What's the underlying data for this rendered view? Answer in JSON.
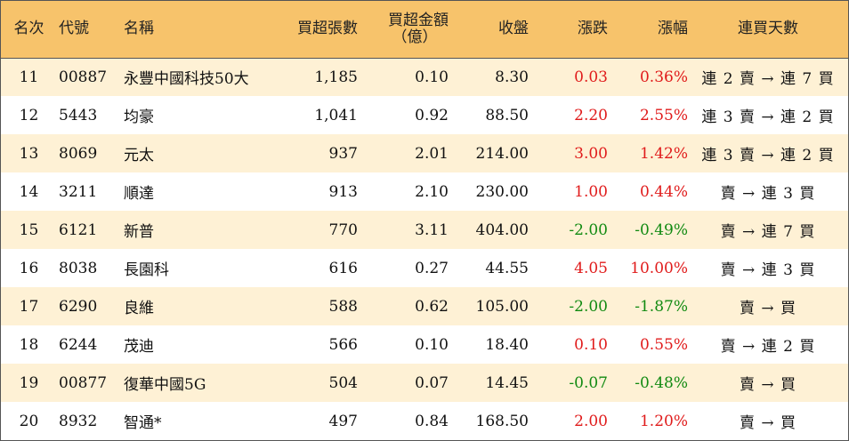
{
  "colors": {
    "header_bg": "#f7c36b",
    "stripe_bg": "#fef1d5",
    "up": "#e01b1b",
    "down": "#118a11"
  },
  "headers": {
    "rank": "名次",
    "code": "代號",
    "name": "名稱",
    "net_lots": "買超張數",
    "net_amount_line1": "買超金額",
    "net_amount_line2": "（億）",
    "close": "收盤",
    "change": "漲跌",
    "change_pct": "漲幅",
    "streak": "連買天數"
  },
  "rows": [
    {
      "rank": "11",
      "code": "00887",
      "name": "永豐中國科技50大",
      "net_lots": "1,185",
      "net_amount": "0.10",
      "close": "8.30",
      "change": "0.03",
      "change_pct": "0.36%",
      "direction": "up",
      "streak": "連 2 賣 → 連 7 買"
    },
    {
      "rank": "12",
      "code": "5443",
      "name": "均豪",
      "net_lots": "1,041",
      "net_amount": "0.92",
      "close": "88.50",
      "change": "2.20",
      "change_pct": "2.55%",
      "direction": "up",
      "streak": "連 3 賣 → 連 2 買"
    },
    {
      "rank": "13",
      "code": "8069",
      "name": "元太",
      "net_lots": "937",
      "net_amount": "2.01",
      "close": "214.00",
      "change": "3.00",
      "change_pct": "1.42%",
      "direction": "up",
      "streak": "連 3 賣 → 連 2 買"
    },
    {
      "rank": "14",
      "code": "3211",
      "name": "順達",
      "net_lots": "913",
      "net_amount": "2.10",
      "close": "230.00",
      "change": "1.00",
      "change_pct": "0.44%",
      "direction": "up",
      "streak": "賣 → 連 3 買"
    },
    {
      "rank": "15",
      "code": "6121",
      "name": "新普",
      "net_lots": "770",
      "net_amount": "3.11",
      "close": "404.00",
      "change": "-2.00",
      "change_pct": "-0.49%",
      "direction": "down",
      "streak": "賣 → 連 7 買"
    },
    {
      "rank": "16",
      "code": "8038",
      "name": "長園科",
      "net_lots": "616",
      "net_amount": "0.27",
      "close": "44.55",
      "change": "4.05",
      "change_pct": "10.00%",
      "direction": "up",
      "streak": "賣 → 連 3 買"
    },
    {
      "rank": "17",
      "code": "6290",
      "name": "良維",
      "net_lots": "588",
      "net_amount": "0.62",
      "close": "105.00",
      "change": "-2.00",
      "change_pct": "-1.87%",
      "direction": "down",
      "streak": "賣 → 買"
    },
    {
      "rank": "18",
      "code": "6244",
      "name": "茂迪",
      "net_lots": "566",
      "net_amount": "0.10",
      "close": "18.40",
      "change": "0.10",
      "change_pct": "0.55%",
      "direction": "up",
      "streak": "賣 → 連 2 買"
    },
    {
      "rank": "19",
      "code": "00877",
      "name": "復華中國5G",
      "net_lots": "504",
      "net_amount": "0.07",
      "close": "14.45",
      "change": "-0.07",
      "change_pct": "-0.48%",
      "direction": "down",
      "streak": "賣 → 買"
    },
    {
      "rank": "20",
      "code": "8932",
      "name": "智通*",
      "net_lots": "497",
      "net_amount": "0.84",
      "close": "168.50",
      "change": "2.00",
      "change_pct": "1.20%",
      "direction": "up",
      "streak": "賣 → 買"
    }
  ]
}
